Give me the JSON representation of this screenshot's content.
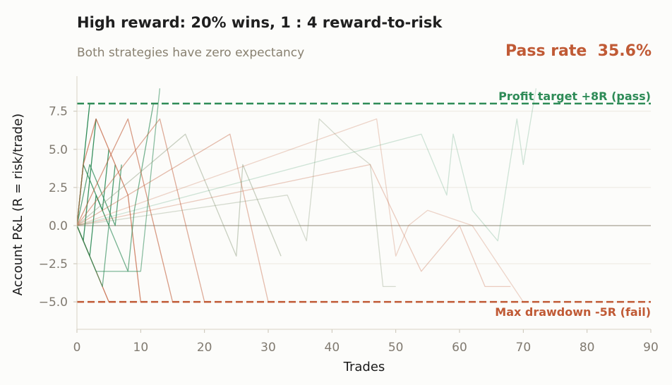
{
  "header": {
    "title": "High reward: 20% wins, 1 : 4 reward-to-risk",
    "subtitle": "Both strategies have zero expectancy",
    "pass_rate": "Pass rate  35.6%"
  },
  "colors": {
    "pass": "#2e8b57",
    "fail": "#c05a35",
    "neutral": "#8a9a7a",
    "baseline": "#b0aa9c"
  },
  "chart_data": {
    "type": "line",
    "title": "High reward: 20% wins, 1 : 4 reward-to-risk",
    "subtitle": "Both strategies have zero expectancy",
    "xlabel": "Trades",
    "ylabel": "Account P&L (R = risk/trade)",
    "xlim": [
      0,
      90
    ],
    "ylim": [
      -6.8,
      9.8
    ],
    "xticks": [
      0,
      10,
      20,
      30,
      40,
      50,
      60,
      70,
      80,
      90
    ],
    "yticks": [
      -5.0,
      -2.5,
      0.0,
      2.5,
      5.0,
      7.5
    ],
    "ytick_labels": [
      "−5.0",
      "−2.5",
      "0.0",
      "2.5",
      "5.0",
      "7.5"
    ],
    "grid": "horizontal",
    "reference_lines": [
      {
        "y": 8,
        "label": "Profit target +8R  (pass)",
        "style": "dashed",
        "color": "#2e8b57"
      },
      {
        "y": -5,
        "label": "Max drawdown -5R  (fail)",
        "style": "dashed",
        "color": "#c05a35"
      },
      {
        "y": 0,
        "label": "",
        "style": "solid",
        "color": "#b0aa9c"
      }
    ],
    "series": [
      {
        "outcome": "pass",
        "x": [
          0,
          1,
          2
        ],
        "y": [
          0,
          4,
          8
        ]
      },
      {
        "outcome": "pass",
        "x": [
          0,
          1,
          2,
          3
        ],
        "y": [
          0,
          -1,
          3,
          7
        ]
      },
      {
        "outcome": "pass",
        "x": [
          0,
          1,
          2,
          3,
          4,
          5
        ],
        "y": [
          0,
          -1,
          -2,
          2,
          1,
          5
        ]
      },
      {
        "outcome": "pass",
        "x": [
          0,
          1,
          2,
          3,
          4,
          5,
          6
        ],
        "y": [
          0,
          4,
          3,
          2,
          1,
          0,
          4
        ]
      },
      {
        "outcome": "fail",
        "x": [
          0,
          1,
          2,
          3,
          4,
          5
        ],
        "y": [
          0,
          -1,
          -2,
          -3,
          -4,
          -5
        ]
      },
      {
        "outcome": "pass",
        "x": [
          0,
          2,
          4,
          6,
          7
        ],
        "y": [
          0,
          4,
          2,
          0,
          4
        ]
      },
      {
        "outcome": "fail",
        "x": [
          0,
          1,
          3,
          8,
          10
        ],
        "y": [
          0,
          4,
          7,
          2,
          -5
        ]
      },
      {
        "outcome": "pass",
        "x": [
          0,
          4,
          5,
          8,
          9,
          12
        ],
        "y": [
          0,
          -4,
          0,
          -3,
          1,
          8
        ]
      },
      {
        "outcome": "fail",
        "x": [
          0,
          8,
          15
        ],
        "y": [
          0,
          7,
          -5
        ]
      },
      {
        "outcome": "pass",
        "x": [
          0,
          3,
          10,
          11,
          13
        ],
        "y": [
          0,
          -3,
          -3,
          1,
          9
        ]
      },
      {
        "outcome": "fail",
        "x": [
          0,
          13,
          20
        ],
        "y": [
          0,
          7,
          -5
        ]
      },
      {
        "outcome": "neutral",
        "x": [
          0,
          17,
          25,
          26,
          32
        ],
        "y": [
          0,
          6,
          -2,
          4,
          -2
        ]
      },
      {
        "outcome": "fail",
        "x": [
          0,
          24,
          30
        ],
        "y": [
          0,
          6,
          -5
        ]
      },
      {
        "outcome": "neutral",
        "x": [
          0,
          33,
          36,
          38,
          43,
          46,
          48,
          49,
          50
        ],
        "y": [
          0,
          2,
          -1,
          7,
          5,
          4,
          -4,
          -4,
          -4
        ]
      },
      {
        "outcome": "fail",
        "x": [
          0,
          46,
          54,
          60,
          64,
          68
        ],
        "y": [
          0,
          4,
          -3,
          0,
          -4,
          -4
        ]
      },
      {
        "outcome": "fail",
        "x": [
          0,
          47,
          50,
          52,
          55,
          62,
          70
        ],
        "y": [
          0,
          7,
          -2,
          0,
          1,
          0,
          -5
        ]
      },
      {
        "outcome": "pass",
        "x": [
          0,
          54,
          58,
          59,
          62,
          66,
          69,
          70,
          72
        ],
        "y": [
          0,
          6,
          2,
          6,
          1,
          -1,
          7,
          4,
          9
        ]
      }
    ]
  }
}
